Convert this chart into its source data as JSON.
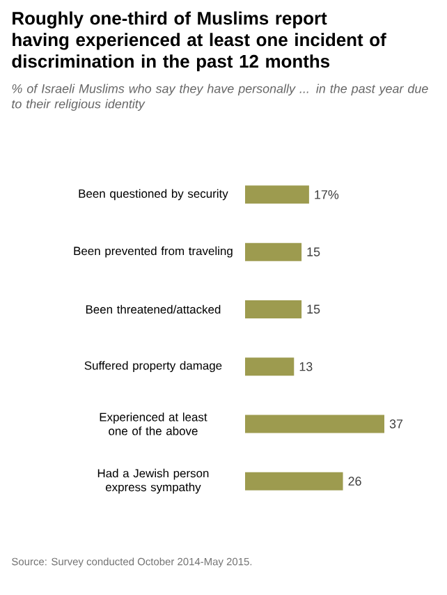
{
  "chart_data": {
    "type": "bar",
    "orientation": "horizontal",
    "title": "Roughly one-third of Muslims report having experienced at least one incident of discrimination in the past 12 months",
    "subtitle": "% of Israeli Muslims who say they have personally ... in the past year due to their religious identity",
    "categories": [
      "Been questioned by security",
      "Been prevented from traveling",
      "Been threatened/attacked",
      "Suffered property damage",
      "Experienced at least one of the above",
      "Had a Jewish person express sympathy"
    ],
    "values": [
      17,
      15,
      15,
      13,
      37,
      26
    ],
    "value_labels": [
      "17%",
      "15",
      "15",
      "13",
      "37",
      "26"
    ],
    "color": "#9d9b4f",
    "annotations": [
      "Source: Survey conducted October 2014-May 2015."
    ]
  }
}
